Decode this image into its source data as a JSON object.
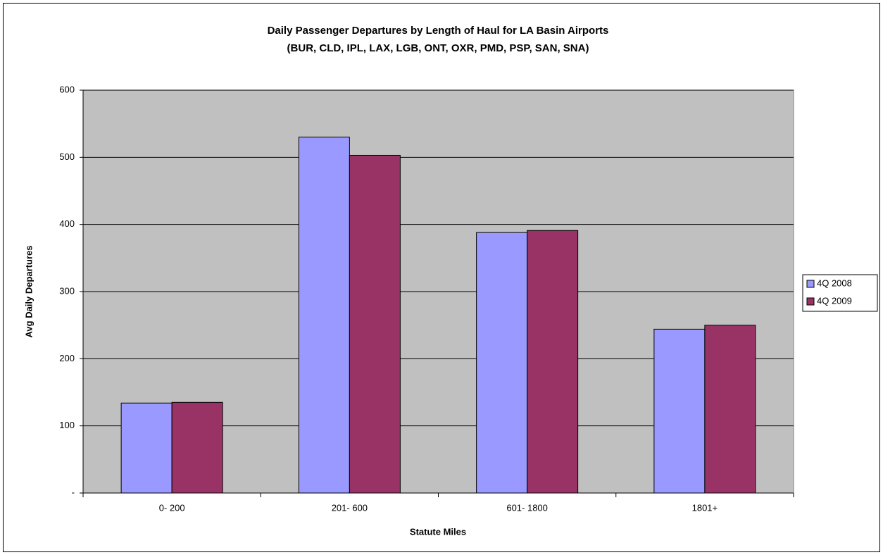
{
  "chart_data": {
    "type": "bar",
    "title": "Daily Passenger Departures by Length of Haul for LA Basin Airports",
    "subtitle": "(BUR, CLD, IPL, LAX, LGB, ONT, OXR, PMD, PSP, SAN, SNA)",
    "x_label": "Statute Miles",
    "y_label": "Avg Daily Departures",
    "categories": [
      "0- 200",
      "201- 600",
      "601- 1800",
      "1801+"
    ],
    "series": [
      {
        "name": "4Q 2008",
        "color": "#9999ff",
        "values": [
          134,
          530,
          388,
          244
        ]
      },
      {
        "name": "4Q 2009",
        "color": "#993366",
        "values": [
          135,
          503,
          391,
          250
        ]
      }
    ],
    "ylim": [
      0,
      600
    ],
    "yticks": [
      {
        "value": 0,
        "label": "-"
      },
      100,
      200,
      300,
      400,
      500,
      600
    ],
    "grid": true,
    "legend": "right"
  }
}
